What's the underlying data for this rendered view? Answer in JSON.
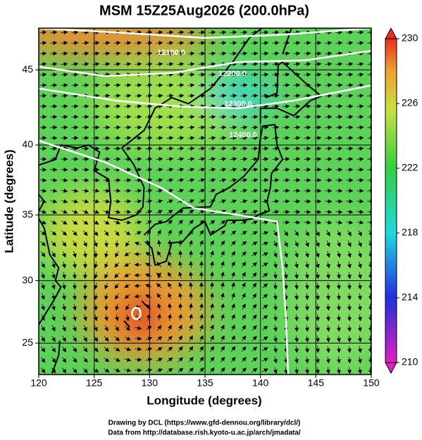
{
  "title": "MSM 15Z25Aug2026 (200.0hPa)",
  "x_axis": {
    "label": "Longitude (degrees)",
    "lim": [
      120,
      150
    ],
    "ticks": [
      120,
      125,
      130,
      135,
      140,
      145,
      150
    ]
  },
  "y_axis": {
    "label": "Latitude  (degrees)",
    "lim": [
      22.4,
      47.6
    ],
    "ticks": [
      25,
      30,
      35,
      40,
      45
    ]
  },
  "colorbar": {
    "lim": [
      210,
      230
    ],
    "ticks": [
      210,
      214,
      218,
      222,
      226,
      230
    ]
  },
  "contour_labels": [
    "12100.0",
    "12200.0",
    "12300.0",
    "12400.0"
  ],
  "footer": [
    "Drawing by DCL (https://www.gfd-dennou.org/library/dcl/)",
    "Data from http://database.rish.kyoto-u.ac.jp/arch/jmadata/"
  ]
}
